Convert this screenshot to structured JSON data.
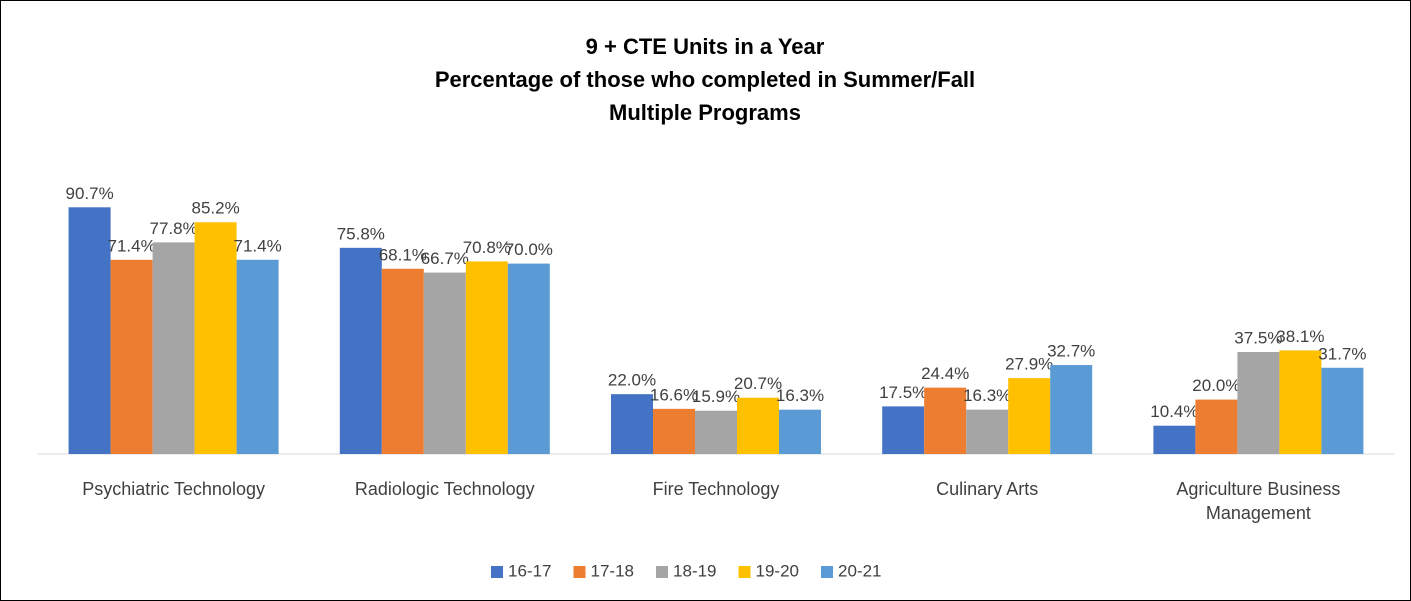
{
  "chart_data": {
    "type": "bar",
    "title": [
      "9 + CTE Units in a Year",
      "Percentage of those who completed in Summer/Fall",
      "Multiple Programs"
    ],
    "categories": [
      "Psychiatric Technology",
      "Radiologic Technology",
      "Fire Technology",
      "Culinary Arts",
      "Agriculture Business Management"
    ],
    "series": [
      {
        "name": "16-17",
        "color": "#4472c4",
        "values": [
          90.7,
          75.8,
          22.0,
          17.5,
          10.4
        ],
        "value_labels": [
          "90.7%",
          "75.8%",
          "22.0%",
          "17.5%",
          "10.4%"
        ]
      },
      {
        "name": "17-18",
        "color": "#ed7d31",
        "values": [
          71.4,
          68.1,
          16.6,
          24.4,
          20.0
        ],
        "value_labels": [
          "71.4%",
          "68.1%",
          "16.6%",
          "24.4%",
          "20.0%"
        ]
      },
      {
        "name": "18-19",
        "color": "#a5a5a5",
        "values": [
          77.8,
          66.7,
          15.9,
          16.3,
          37.5
        ],
        "value_labels": [
          "77.8%",
          "66.7%",
          "15.9%",
          "16.3%",
          "37.5%"
        ]
      },
      {
        "name": "19-20",
        "color": "#ffc000",
        "values": [
          85.2,
          70.8,
          20.7,
          27.9,
          38.1
        ],
        "value_labels": [
          "85.2%",
          "70.8%",
          "20.7%",
          "27.9%",
          "38.1%"
        ]
      },
      {
        "name": "20-21",
        "color": "#5b9bd5",
        "values": [
          71.4,
          70.0,
          16.3,
          32.7,
          31.7
        ],
        "value_labels": [
          "71.4%",
          "70.0%",
          "16.3%",
          "32.7%",
          "31.7%"
        ]
      }
    ],
    "ylim": [
      0,
      100
    ],
    "legend": "bottom"
  }
}
